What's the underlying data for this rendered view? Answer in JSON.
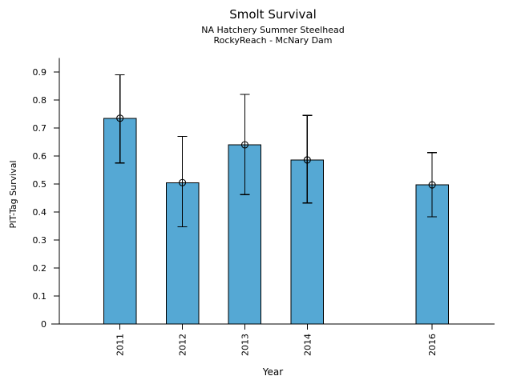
{
  "figure_title": "Smolt Survival",
  "chart_data": {
    "type": "bar",
    "title": "Smolt Survival",
    "subtitle": [
      "NA Hatchery Summer Steelhead",
      "RockyReach - McNary Dam"
    ],
    "xlabel": "Year",
    "ylabel": "PIT-Tag Survival",
    "categories": [
      "2011",
      "2012",
      "2013",
      "2014",
      "2016"
    ],
    "x": [
      2011,
      2012,
      2013,
      2014,
      2016
    ],
    "values": [
      0.735,
      0.505,
      0.64,
      0.586,
      0.497
    ],
    "error_low": [
      0.575,
      0.347,
      0.462,
      0.432,
      0.383
    ],
    "error_high": [
      0.89,
      0.67,
      0.82,
      0.745,
      0.612
    ],
    "series_note": "single series, error bars show confidence interval, open circle marker at bar top",
    "xlim": [
      2009.9,
      2017.0
    ],
    "ylim": [
      0,
      0.95
    ],
    "yticks": [
      0,
      0.1,
      0.2,
      0.3,
      0.4,
      0.5,
      0.6,
      0.7,
      0.8,
      0.9
    ],
    "ytick_labels": [
      "0",
      "0.1",
      "0.2",
      "0.3",
      "0.4",
      "0.5",
      "0.6",
      "0.7",
      "0.8",
      "0.9"
    ],
    "bar_width_units": 0.52,
    "bar_fill": "#55A8D4",
    "bar_edge": "#000000",
    "axis_color": "#000000",
    "grid": false,
    "legend": null,
    "marker": "open-circle"
  }
}
